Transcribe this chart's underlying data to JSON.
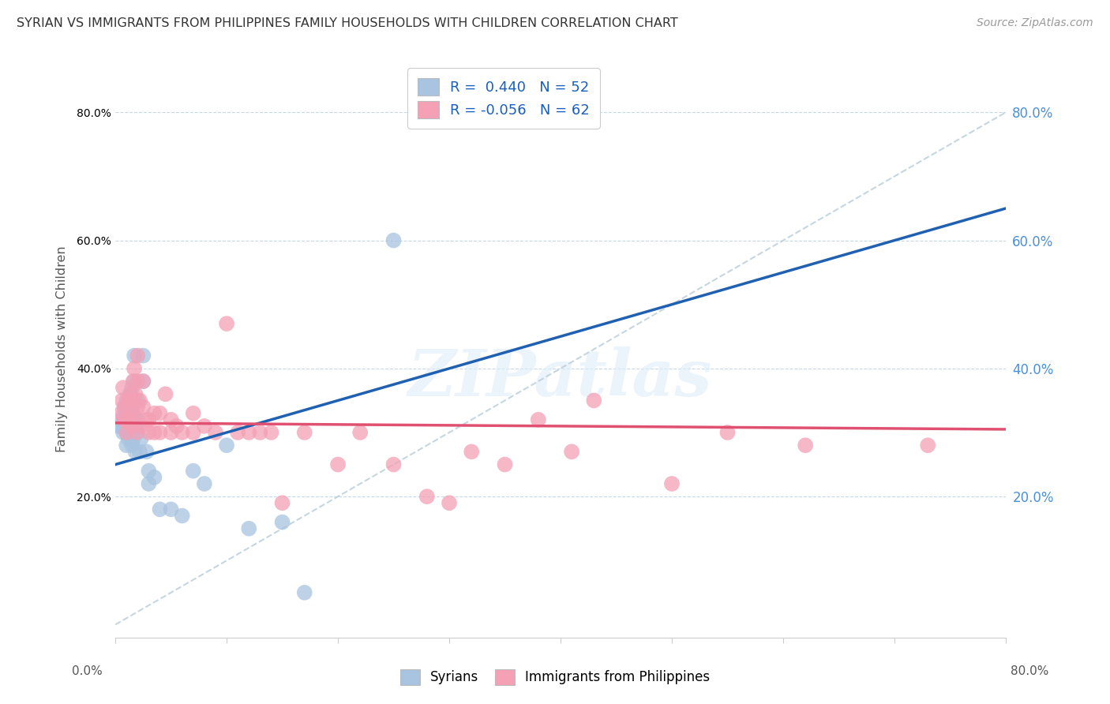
{
  "title": "SYRIAN VS IMMIGRANTS FROM PHILIPPINES FAMILY HOUSEHOLDS WITH CHILDREN CORRELATION CHART",
  "source": "Source: ZipAtlas.com",
  "ylabel": "Family Households with Children",
  "xlim": [
    0.0,
    0.8
  ],
  "ylim": [
    -0.02,
    0.88
  ],
  "yticks": [
    0.2,
    0.4,
    0.6,
    0.8
  ],
  "xticks": [
    0.0,
    0.1,
    0.2,
    0.3,
    0.4,
    0.5,
    0.6,
    0.7,
    0.8
  ],
  "color_syrian": "#a8c4e0",
  "color_philippines": "#f4a0b5",
  "color_line_syrian": "#2060b0",
  "color_line_philippines": "#e05070",
  "color_line_diagonal": "#b8ccd8",
  "watermark_text": "ZIPatlas",
  "legend_labels": [
    "R =  0.440   N = 52",
    "R = -0.056   N = 62"
  ],
  "bottom_labels": [
    "Syrians",
    "Immigrants from Philippines"
  ],
  "syrians_x": [
    0.003,
    0.005,
    0.005,
    0.007,
    0.008,
    0.008,
    0.008,
    0.009,
    0.01,
    0.01,
    0.01,
    0.012,
    0.012,
    0.012,
    0.013,
    0.013,
    0.013,
    0.014,
    0.014,
    0.015,
    0.015,
    0.015,
    0.015,
    0.015,
    0.016,
    0.016,
    0.017,
    0.017,
    0.018,
    0.018,
    0.019,
    0.02,
    0.02,
    0.02,
    0.022,
    0.023,
    0.025,
    0.025,
    0.028,
    0.03,
    0.03,
    0.035,
    0.04,
    0.05,
    0.06,
    0.07,
    0.08,
    0.1,
    0.12,
    0.15,
    0.17,
    0.25
  ],
  "syrians_y": [
    0.31,
    0.31,
    0.32,
    0.3,
    0.31,
    0.33,
    0.34,
    0.32,
    0.28,
    0.3,
    0.35,
    0.29,
    0.3,
    0.33,
    0.31,
    0.33,
    0.36,
    0.3,
    0.35,
    0.28,
    0.3,
    0.32,
    0.34,
    0.37,
    0.29,
    0.31,
    0.38,
    0.42,
    0.27,
    0.32,
    0.31,
    0.3,
    0.32,
    0.35,
    0.27,
    0.29,
    0.38,
    0.42,
    0.27,
    0.22,
    0.24,
    0.23,
    0.18,
    0.18,
    0.17,
    0.24,
    0.22,
    0.28,
    0.15,
    0.16,
    0.05,
    0.6
  ],
  "philippines_x": [
    0.005,
    0.006,
    0.007,
    0.008,
    0.009,
    0.01,
    0.01,
    0.012,
    0.013,
    0.014,
    0.015,
    0.015,
    0.015,
    0.016,
    0.017,
    0.018,
    0.018,
    0.019,
    0.02,
    0.02,
    0.02,
    0.022,
    0.023,
    0.025,
    0.025,
    0.028,
    0.03,
    0.03,
    0.035,
    0.035,
    0.04,
    0.04,
    0.045,
    0.05,
    0.05,
    0.055,
    0.06,
    0.07,
    0.07,
    0.08,
    0.09,
    0.1,
    0.11,
    0.12,
    0.13,
    0.14,
    0.15,
    0.17,
    0.2,
    0.22,
    0.25,
    0.28,
    0.3,
    0.32,
    0.35,
    0.38,
    0.41,
    0.43,
    0.5,
    0.55,
    0.62,
    0.73
  ],
  "philippines_y": [
    0.33,
    0.35,
    0.37,
    0.32,
    0.34,
    0.3,
    0.32,
    0.35,
    0.32,
    0.36,
    0.31,
    0.33,
    0.35,
    0.38,
    0.4,
    0.32,
    0.36,
    0.3,
    0.34,
    0.38,
    0.42,
    0.35,
    0.31,
    0.34,
    0.38,
    0.32,
    0.3,
    0.32,
    0.3,
    0.33,
    0.3,
    0.33,
    0.36,
    0.3,
    0.32,
    0.31,
    0.3,
    0.3,
    0.33,
    0.31,
    0.3,
    0.47,
    0.3,
    0.3,
    0.3,
    0.3,
    0.19,
    0.3,
    0.25,
    0.3,
    0.25,
    0.2,
    0.19,
    0.27,
    0.25,
    0.32,
    0.27,
    0.35,
    0.22,
    0.3,
    0.28,
    0.28
  ]
}
